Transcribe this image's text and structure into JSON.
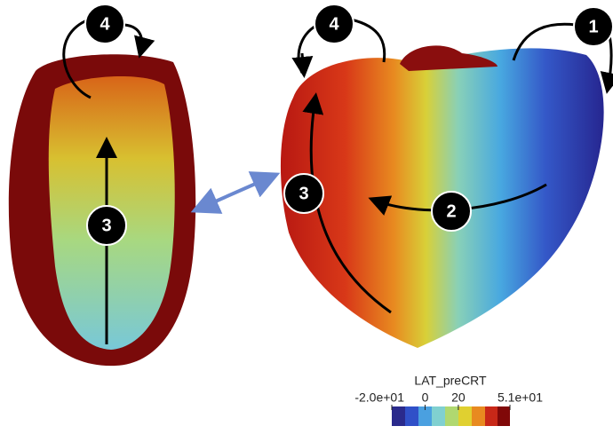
{
  "markers": [
    "4",
    "3",
    "4",
    "1",
    "3",
    "2"
  ],
  "colorbar": {
    "title": "LAT_preCRT",
    "ticks": [
      {
        "value": -20,
        "label": "-2.0e+01"
      },
      0,
      20,
      {
        "value": 51,
        "label": "5.1e+01"
      }
    ]
  }
}
